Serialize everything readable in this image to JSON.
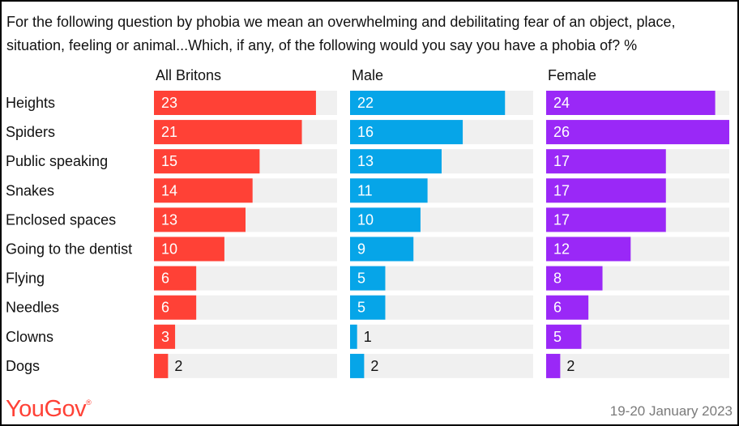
{
  "question": "For the following question by phobia we mean an overwhelming and debilitating fear of an object, place, situation, feeling or animal...Which, if any, of the following would you say you have a phobia of? %",
  "brand": {
    "name": "YouGov",
    "mark": "®"
  },
  "date": "19-20 January 2023",
  "colors": {
    "All Britons": "#ff4136",
    "Male": "#06a5e8",
    "Female": "#9a28f7",
    "track": "#f0f0f0"
  },
  "chart_data": {
    "type": "bar",
    "orientation": "horizontal",
    "categories": [
      "Heights",
      "Spiders",
      "Public speaking",
      "Snakes",
      "Enclosed spaces",
      "Going to the dentist",
      "Flying",
      "Needles",
      "Clowns",
      "Dogs"
    ],
    "series": [
      {
        "name": "All Britons",
        "values": [
          23,
          21,
          15,
          14,
          13,
          10,
          6,
          6,
          3,
          2
        ]
      },
      {
        "name": "Male",
        "values": [
          22,
          16,
          13,
          11,
          10,
          9,
          5,
          5,
          1,
          2
        ]
      },
      {
        "name": "Female",
        "values": [
          24,
          26,
          17,
          17,
          17,
          12,
          8,
          6,
          5,
          2
        ]
      }
    ],
    "xlim": [
      0,
      26
    ],
    "unit": "%",
    "grid": false
  }
}
